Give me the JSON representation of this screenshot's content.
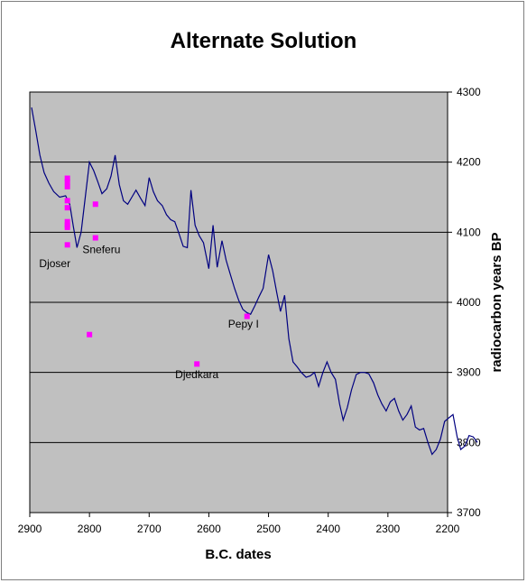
{
  "chart_data": {
    "type": "line",
    "title": "Alternate Solution",
    "xlabel": "B.C. dates",
    "ylabel": "radiocarbon years BP",
    "x_axis": "reversed",
    "xlim": [
      2900,
      2200
    ],
    "ylim": [
      3700,
      4300
    ],
    "y_axis_side": "right",
    "grid": "horizontal",
    "background": "#c0c0c0",
    "xticks": [
      2900,
      2800,
      2700,
      2600,
      2500,
      2400,
      2300,
      2200
    ],
    "yticks": [
      3700,
      3800,
      3900,
      4000,
      4100,
      4200,
      4300
    ],
    "series": [
      {
        "style": "line",
        "color": "#000080",
        "points": [
          [
            2897,
            4278
          ],
          [
            2890,
            4245
          ],
          [
            2883,
            4210
          ],
          [
            2876,
            4185
          ],
          [
            2868,
            4170
          ],
          [
            2860,
            4158
          ],
          [
            2850,
            4150
          ],
          [
            2840,
            4152
          ],
          [
            2833,
            4140
          ],
          [
            2827,
            4108
          ],
          [
            2821,
            4078
          ],
          [
            2814,
            4100
          ],
          [
            2807,
            4150
          ],
          [
            2800,
            4200
          ],
          [
            2793,
            4188
          ],
          [
            2786,
            4172
          ],
          [
            2779,
            4155
          ],
          [
            2771,
            4162
          ],
          [
            2764,
            4180
          ],
          [
            2757,
            4210
          ],
          [
            2750,
            4168
          ],
          [
            2743,
            4145
          ],
          [
            2736,
            4140
          ],
          [
            2729,
            4150
          ],
          [
            2722,
            4160
          ],
          [
            2714,
            4148
          ],
          [
            2707,
            4138
          ],
          [
            2700,
            4178
          ],
          [
            2693,
            4158
          ],
          [
            2686,
            4145
          ],
          [
            2678,
            4138
          ],
          [
            2671,
            4125
          ],
          [
            2664,
            4118
          ],
          [
            2657,
            4115
          ],
          [
            2650,
            4098
          ],
          [
            2643,
            4080
          ],
          [
            2636,
            4078
          ],
          [
            2630,
            4160
          ],
          [
            2623,
            4110
          ],
          [
            2616,
            4095
          ],
          [
            2609,
            4085
          ],
          [
            2600,
            4048
          ],
          [
            2593,
            4110
          ],
          [
            2586,
            4050
          ],
          [
            2578,
            4088
          ],
          [
            2571,
            4060
          ],
          [
            2564,
            4040
          ],
          [
            2557,
            4020
          ],
          [
            2550,
            4003
          ],
          [
            2543,
            3990
          ],
          [
            2536,
            3985
          ],
          [
            2530,
            3983
          ],
          [
            2523,
            3995
          ],
          [
            2516,
            4008
          ],
          [
            2509,
            4020
          ],
          [
            2500,
            4068
          ],
          [
            2493,
            4045
          ],
          [
            2486,
            4013
          ],
          [
            2480,
            3987
          ],
          [
            2473,
            4010
          ],
          [
            2466,
            3948
          ],
          [
            2459,
            3915
          ],
          [
            2452,
            3908
          ],
          [
            2445,
            3900
          ],
          [
            2437,
            3893
          ],
          [
            2430,
            3895
          ],
          [
            2423,
            3900
          ],
          [
            2416,
            3880
          ],
          [
            2409,
            3900
          ],
          [
            2402,
            3915
          ],
          [
            2395,
            3900
          ],
          [
            2388,
            3890
          ],
          [
            2381,
            3855
          ],
          [
            2375,
            3832
          ],
          [
            2368,
            3850
          ],
          [
            2361,
            3875
          ],
          [
            2353,
            3897
          ],
          [
            2346,
            3900
          ],
          [
            2339,
            3900
          ],
          [
            2332,
            3898
          ],
          [
            2324,
            3885
          ],
          [
            2317,
            3868
          ],
          [
            2310,
            3855
          ],
          [
            2303,
            3845
          ],
          [
            2296,
            3858
          ],
          [
            2289,
            3863
          ],
          [
            2282,
            3845
          ],
          [
            2275,
            3832
          ],
          [
            2268,
            3840
          ],
          [
            2261,
            3852
          ],
          [
            2254,
            3822
          ],
          [
            2247,
            3818
          ],
          [
            2240,
            3820
          ],
          [
            2233,
            3800
          ],
          [
            2226,
            3783
          ],
          [
            2219,
            3790
          ],
          [
            2212,
            3805
          ],
          [
            2205,
            3830
          ],
          [
            2198,
            3835
          ],
          [
            2191,
            3840
          ],
          [
            2184,
            3808
          ],
          [
            2178,
            3790
          ],
          [
            2171,
            3795
          ],
          [
            2164,
            3810
          ],
          [
            2157,
            3808
          ],
          [
            2150,
            3800
          ]
        ]
      },
      {
        "style": "markers",
        "color": "#ff00ff",
        "points": [
          [
            2837,
            4177
          ],
          [
            2837,
            4172
          ],
          [
            2837,
            4165
          ],
          [
            2837,
            4145
          ],
          [
            2837,
            4135
          ],
          [
            2837,
            4115
          ],
          [
            2837,
            4110
          ],
          [
            2837,
            4107
          ],
          [
            2837,
            4082
          ],
          [
            2790,
            4140
          ],
          [
            2790,
            4092
          ],
          [
            2800,
            3954
          ],
          [
            2620,
            3912
          ],
          [
            2536,
            3980
          ]
        ]
      }
    ],
    "annotations": [
      {
        "text": "Djoser",
        "x": 2858,
        "y": 4050
      },
      {
        "text": "Sneferu",
        "x": 2780,
        "y": 4070
      },
      {
        "text": "Pepy I",
        "x": 2542,
        "y": 3964
      },
      {
        "text": "Djedkara",
        "x": 2620,
        "y": 3892
      }
    ]
  }
}
